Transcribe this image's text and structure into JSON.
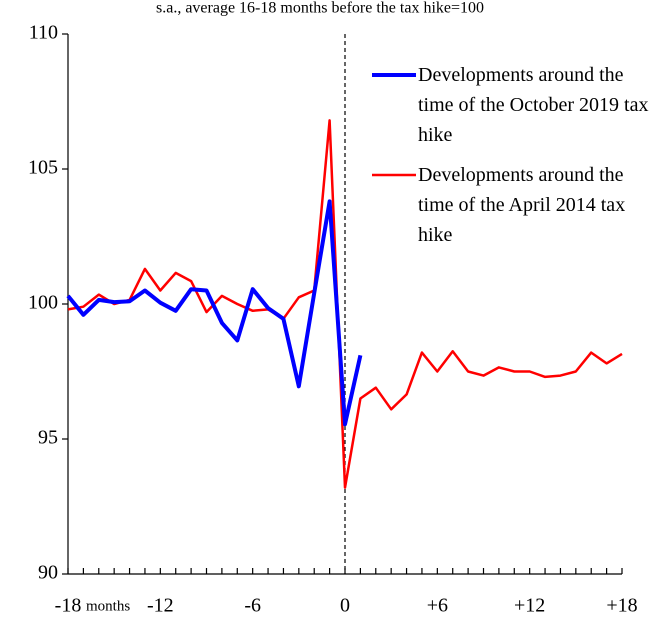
{
  "chart_data": {
    "type": "line",
    "subtitle": "s.a., average 16-18 months  before  the  tax hike=100",
    "x_label": "months",
    "x": [
      -18,
      -17,
      -16,
      -15,
      -14,
      -13,
      -12,
      -11,
      -10,
      -9,
      -8,
      -7,
      -6,
      -5,
      -4,
      -3,
      -2,
      -1,
      0,
      1,
      2,
      3,
      4,
      5,
      6,
      7,
      8,
      9,
      10,
      11,
      12,
      13,
      14,
      15,
      16,
      17,
      18
    ],
    "series": [
      {
        "name": "Developments around the time of the October 2019 tax hike",
        "color": "#0000ff",
        "width": 4,
        "values": [
          100.3,
          99.6,
          100.15,
          100.07,
          100.1,
          100.5,
          100.05,
          99.75,
          100.55,
          100.5,
          99.3,
          98.65,
          100.55,
          99.85,
          99.45,
          96.95,
          100.4,
          103.8,
          95.55,
          98.1,
          null,
          null,
          null,
          null,
          null,
          null,
          null,
          null,
          null,
          null,
          null,
          null,
          null,
          null,
          null,
          null,
          null
        ]
      },
      {
        "name": "Developments around the time of the April 2014 tax hike",
        "color": "#ff0000",
        "width": 2.5,
        "values": [
          99.8,
          99.9,
          100.35,
          100.0,
          100.15,
          101.3,
          100.5,
          101.15,
          100.85,
          99.7,
          100.3,
          100.0,
          99.75,
          99.8,
          99.45,
          100.25,
          100.5,
          106.8,
          93.2,
          96.5,
          96.9,
          96.1,
          96.65,
          98.2,
          97.5,
          98.25,
          97.5,
          97.35,
          97.65,
          97.5,
          97.5,
          97.3,
          97.35,
          97.5,
          98.2,
          97.8,
          98.15
        ]
      }
    ],
    "xlim": [
      -18,
      18
    ],
    "xticks": [
      -18,
      -12,
      -6,
      0,
      {
        "value": 6,
        "label": "+6"
      },
      {
        "value": 12,
        "label": "+12"
      },
      {
        "value": 18,
        "label": "+18"
      }
    ],
    "ylim": [
      90,
      110
    ],
    "yticks": [
      90,
      95,
      100,
      105,
      110
    ]
  }
}
